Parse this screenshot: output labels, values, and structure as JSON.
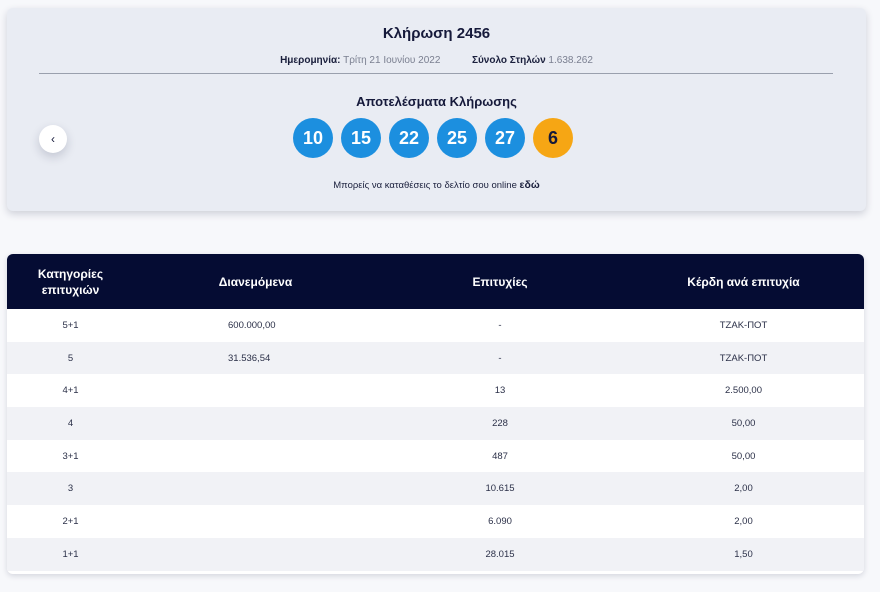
{
  "draw": {
    "title": "Κλήρωση 2456",
    "date_label": "Ημερομηνία:",
    "date_value": "Τρίτη 21 Ιουνίου 2022",
    "columns_label": "Σύνολο Στηλών",
    "columns_value": "1.638.262",
    "results_title": "Αποτελέσματα Κλήρωσης",
    "numbers": [
      "10",
      "15",
      "22",
      "25",
      "27"
    ],
    "joker": "6",
    "online_text": "Μπορείς να καταθέσεις το δελτίο σου online",
    "online_link": "εδώ",
    "prev_icon": "‹"
  },
  "colors": {
    "ball": "#1c8fdf",
    "joker": "#f6a614",
    "header": "#050c33"
  },
  "table": {
    "headers": [
      "Κατηγορίες επιτυχιών",
      "Διανεμόμενα",
      "Επιτυχίες",
      "Κέρδη ανά επιτυχία"
    ],
    "rows": [
      [
        "5+1",
        "600.000,00",
        "-",
        "ΤΖΑΚ-ΠΟΤ"
      ],
      [
        "5",
        "31.536,54",
        "-",
        "ΤΖΑΚ-ΠΟΤ"
      ],
      [
        "4+1",
        "",
        "13",
        "2.500,00"
      ],
      [
        "4",
        "",
        "228",
        "50,00"
      ],
      [
        "3+1",
        "",
        "487",
        "50,00"
      ],
      [
        "3",
        "",
        "10.615",
        "2,00"
      ],
      [
        "2+1",
        "",
        "6.090",
        "2,00"
      ],
      [
        "1+1",
        "",
        "28.015",
        "1,50"
      ]
    ]
  }
}
